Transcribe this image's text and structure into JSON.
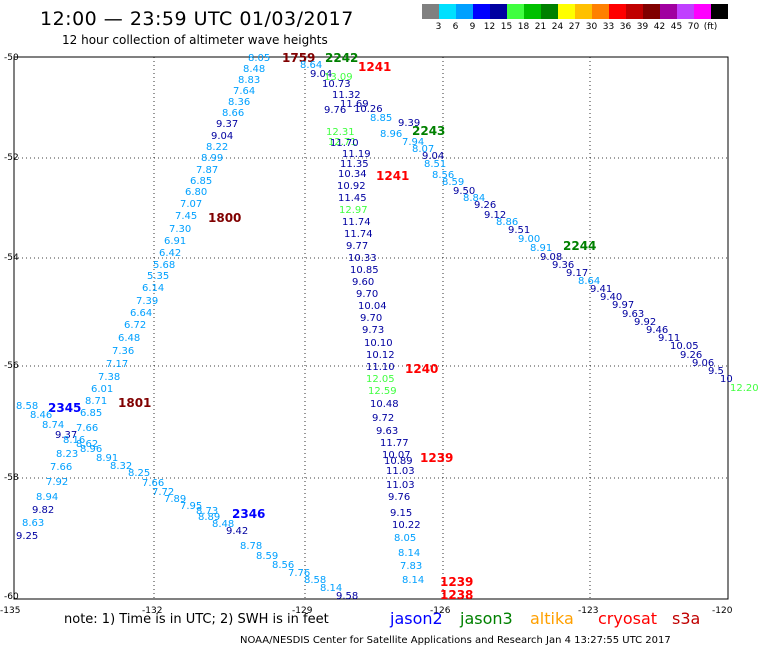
{
  "title": "12:00 — 23:59 UTC 01/03/2017",
  "subtitle": "12 hour collection of altimeter wave heights",
  "colorscale": {
    "colors": [
      "#808080",
      "#00e0ff",
      "#00a0ff",
      "#0000ff",
      "#0000a0",
      "#40ff40",
      "#00c000",
      "#008000",
      "#ffff00",
      "#ffc000",
      "#ff8000",
      "#ff0000",
      "#c00000",
      "#800000",
      "#a000a0",
      "#c040ff",
      "#ff00ff",
      "#000000"
    ],
    "labels": [
      "3",
      "6",
      "9",
      "12",
      "15",
      "18",
      "21",
      "24",
      "27",
      "30",
      "33",
      "36",
      "39",
      "42",
      "45",
      "70",
      "(ft)"
    ]
  },
  "axes": {
    "lat_labels": [
      "-50",
      "-52",
      "-54",
      "-56",
      "-58",
      "-60"
    ],
    "lon_labels": [
      "-135",
      "-132",
      "-129",
      "-126",
      "-123",
      "-120"
    ]
  },
  "time_labels": [
    {
      "text": "1759",
      "color": "#800000"
    },
    {
      "text": "2242",
      "color": "#008000"
    },
    {
      "text": "1241",
      "color": "#ff0000"
    },
    {
      "text": "2243",
      "color": "#008000"
    },
    {
      "text": "1241",
      "color": "#ff0000"
    },
    {
      "text": "1800",
      "color": "#800000"
    },
    {
      "text": "2244",
      "color": "#008000"
    },
    {
      "text": "1240",
      "color": "#ff0000"
    },
    {
      "text": "2345",
      "color": "#0000ff"
    },
    {
      "text": "1801",
      "color": "#800000"
    },
    {
      "text": "1239",
      "color": "#ff0000"
    },
    {
      "text": "2346",
      "color": "#0000ff"
    },
    {
      "text": "1239",
      "color": "#ff0000"
    },
    {
      "text": "1238",
      "color": "#ff0000"
    }
  ],
  "wave_values": [
    {
      "v": "8.05",
      "c": "#00a0ff"
    },
    {
      "v": "8.48",
      "c": "#00a0ff"
    },
    {
      "v": "8.83",
      "c": "#00a0ff"
    },
    {
      "v": "7.64",
      "c": "#00a0ff"
    },
    {
      "v": "8.36",
      "c": "#00a0ff"
    },
    {
      "v": "8.66",
      "c": "#00a0ff"
    },
    {
      "v": "9.37",
      "c": "#0000a0"
    },
    {
      "v": "9.04",
      "c": "#0000a0"
    },
    {
      "v": "8.22",
      "c": "#00a0ff"
    },
    {
      "v": "8.99",
      "c": "#00a0ff"
    },
    {
      "v": "7.87",
      "c": "#00a0ff"
    },
    {
      "v": "6.85",
      "c": "#00a0ff"
    },
    {
      "v": "6.80",
      "c": "#00a0ff"
    },
    {
      "v": "7.07",
      "c": "#00a0ff"
    },
    {
      "v": "7.45",
      "c": "#00a0ff"
    },
    {
      "v": "7.30",
      "c": "#00a0ff"
    },
    {
      "v": "6.91",
      "c": "#00a0ff"
    },
    {
      "v": "6.42",
      "c": "#00a0ff"
    },
    {
      "v": "5.68",
      "c": "#00a0ff"
    },
    {
      "v": "5.35",
      "c": "#00a0ff"
    },
    {
      "v": "6.14",
      "c": "#00a0ff"
    },
    {
      "v": "7.39",
      "c": "#00a0ff"
    },
    {
      "v": "6.64",
      "c": "#00a0ff"
    },
    {
      "v": "6.72",
      "c": "#00a0ff"
    },
    {
      "v": "6.48",
      "c": "#00a0ff"
    },
    {
      "v": "7.36",
      "c": "#00a0ff"
    },
    {
      "v": "7.17",
      "c": "#00a0ff"
    },
    {
      "v": "7.38",
      "c": "#00a0ff"
    },
    {
      "v": "6.01",
      "c": "#00a0ff"
    },
    {
      "v": "8.71",
      "c": "#00a0ff"
    },
    {
      "v": "6.85",
      "c": "#00a0ff"
    },
    {
      "v": "7.66",
      "c": "#00a0ff"
    },
    {
      "v": "8.58",
      "c": "#00a0ff"
    },
    {
      "v": "8.46",
      "c": "#00a0ff"
    },
    {
      "v": "8.74",
      "c": "#00a0ff"
    },
    {
      "v": "9.37",
      "c": "#0000a0"
    },
    {
      "v": "8.16",
      "c": "#00a0ff"
    },
    {
      "v": "8.62",
      "c": "#00a0ff"
    },
    {
      "v": "8.96",
      "c": "#00a0ff"
    },
    {
      "v": "8.23",
      "c": "#00a0ff"
    },
    {
      "v": "8.91",
      "c": "#00a0ff"
    },
    {
      "v": "8.32",
      "c": "#00a0ff"
    },
    {
      "v": "7.66",
      "c": "#00a0ff"
    },
    {
      "v": "8.25",
      "c": "#00a0ff"
    },
    {
      "v": "7.66",
      "c": "#00a0ff"
    },
    {
      "v": "7.92",
      "c": "#00a0ff"
    },
    {
      "v": "7.72",
      "c": "#00a0ff"
    },
    {
      "v": "7.89",
      "c": "#00a0ff"
    },
    {
      "v": "7.95",
      "c": "#00a0ff"
    },
    {
      "v": "8.94",
      "c": "#00a0ff"
    },
    {
      "v": "8.73",
      "c": "#00a0ff"
    },
    {
      "v": "9.82",
      "c": "#0000a0"
    },
    {
      "v": "8.89",
      "c": "#00a0ff"
    },
    {
      "v": "8.48",
      "c": "#00a0ff"
    },
    {
      "v": "8.63",
      "c": "#00a0ff"
    },
    {
      "v": "9.42",
      "c": "#0000a0"
    },
    {
      "v": "9.25",
      "c": "#0000a0"
    },
    {
      "v": "8.78",
      "c": "#00a0ff"
    },
    {
      "v": "8.59",
      "c": "#00a0ff"
    },
    {
      "v": "8.56",
      "c": "#00a0ff"
    },
    {
      "v": "7.76",
      "c": "#00a0ff"
    },
    {
      "v": "8.58",
      "c": "#00a0ff"
    },
    {
      "v": "8.14",
      "c": "#00a0ff"
    },
    {
      "v": "9.58",
      "c": "#0000a0"
    },
    {
      "v": "8.64",
      "c": "#00a0ff"
    },
    {
      "v": "9.04",
      "c": "#0000a0"
    },
    {
      "v": "10.73",
      "c": "#0000a0"
    },
    {
      "v": "11.32",
      "c": "#0000a0"
    },
    {
      "v": "11.69",
      "c": "#0000a0"
    },
    {
      "v": "9.76",
      "c": "#0000a0"
    },
    {
      "v": "10.26",
      "c": "#0000a0"
    },
    {
      "v": "8.85",
      "c": "#00a0ff"
    },
    {
      "v": "9.39",
      "c": "#0000a0"
    },
    {
      "v": "8.96",
      "c": "#00a0ff"
    },
    {
      "v": "7.94",
      "c": "#00a0ff"
    },
    {
      "v": "8.07",
      "c": "#00a0ff"
    },
    {
      "v": "9.04",
      "c": "#0000a0"
    },
    {
      "v": "8.51",
      "c": "#00a0ff"
    },
    {
      "v": "8.56",
      "c": "#00a0ff"
    },
    {
      "v": "8.59",
      "c": "#00a0ff"
    },
    {
      "v": "9.50",
      "c": "#0000a0"
    },
    {
      "v": "8.84",
      "c": "#00a0ff"
    },
    {
      "v": "9.26",
      "c": "#0000a0"
    },
    {
      "v": "9.12",
      "c": "#0000a0"
    },
    {
      "v": "8.86",
      "c": "#00a0ff"
    },
    {
      "v": "9.51",
      "c": "#0000a0"
    },
    {
      "v": "9.00",
      "c": "#00a0ff"
    },
    {
      "v": "8.91",
      "c": "#00a0ff"
    },
    {
      "v": "9.08",
      "c": "#0000a0"
    },
    {
      "v": "9.36",
      "c": "#0000a0"
    },
    {
      "v": "9.17",
      "c": "#0000a0"
    },
    {
      "v": "8.64",
      "c": "#00a0ff"
    },
    {
      "v": "9.41",
      "c": "#0000a0"
    },
    {
      "v": "9.40",
      "c": "#0000a0"
    },
    {
      "v": "9.97",
      "c": "#0000a0"
    },
    {
      "v": "9.63",
      "c": "#0000a0"
    },
    {
      "v": "9.92",
      "c": "#0000a0"
    },
    {
      "v": "9.46",
      "c": "#0000a0"
    },
    {
      "v": "9.11",
      "c": "#0000a0"
    },
    {
      "v": "10.05",
      "c": "#0000a0"
    },
    {
      "v": "9.26",
      "c": "#0000a0"
    },
    {
      "v": "9.06",
      "c": "#0000a0"
    },
    {
      "v": "9.5",
      "c": "#0000a0"
    },
    {
      "v": "10",
      "c": "#0000a0"
    },
    {
      "v": "12.20",
      "c": "#40ff40"
    },
    {
      "v": "13.09",
      "c": "#40ff40"
    },
    {
      "v": "12.31",
      "c": "#40ff40"
    },
    {
      "v": "12.71",
      "c": "#40ff40"
    },
    {
      "v": "11.70",
      "c": "#0000a0"
    },
    {
      "v": "11.19",
      "c": "#0000a0"
    },
    {
      "v": "11.35",
      "c": "#0000a0"
    },
    {
      "v": "10.34",
      "c": "#0000a0"
    },
    {
      "v": "10.92",
      "c": "#0000a0"
    },
    {
      "v": "11.45",
      "c": "#0000a0"
    },
    {
      "v": "12.97",
      "c": "#40ff40"
    },
    {
      "v": "11.74",
      "c": "#0000a0"
    },
    {
      "v": "11.74",
      "c": "#0000a0"
    },
    {
      "v": "9.77",
      "c": "#0000a0"
    },
    {
      "v": "10.33",
      "c": "#0000a0"
    },
    {
      "v": "10.85",
      "c": "#0000a0"
    },
    {
      "v": "9.60",
      "c": "#0000a0"
    },
    {
      "v": "9.70",
      "c": "#0000a0"
    },
    {
      "v": "10.04",
      "c": "#0000a0"
    },
    {
      "v": "9.70",
      "c": "#0000a0"
    },
    {
      "v": "9.73",
      "c": "#0000a0"
    },
    {
      "v": "10.10",
      "c": "#0000a0"
    },
    {
      "v": "10.12",
      "c": "#0000a0"
    },
    {
      "v": "11.10",
      "c": "#0000a0"
    },
    {
      "v": "12.05",
      "c": "#40ff40"
    },
    {
      "v": "12.59",
      "c": "#40ff40"
    },
    {
      "v": "10.48",
      "c": "#0000a0"
    },
    {
      "v": "9.72",
      "c": "#0000a0"
    },
    {
      "v": "9.63",
      "c": "#0000a0"
    },
    {
      "v": "11.77",
      "c": "#0000a0"
    },
    {
      "v": "10.07",
      "c": "#0000a0"
    },
    {
      "v": "10.89",
      "c": "#0000a0"
    },
    {
      "v": "11.03",
      "c": "#0000a0"
    },
    {
      "v": "11.03",
      "c": "#0000a0"
    },
    {
      "v": "9.76",
      "c": "#0000a0"
    },
    {
      "v": "9.15",
      "c": "#0000a0"
    },
    {
      "v": "10.22",
      "c": "#0000a0"
    },
    {
      "v": "8.05",
      "c": "#00a0ff"
    },
    {
      "v": "8.14",
      "c": "#00a0ff"
    },
    {
      "v": "7.83",
      "c": "#00a0ff"
    },
    {
      "v": "8.14",
      "c": "#00a0ff"
    }
  ],
  "note": "note: 1) Time is in UTC; 2) SWH is in feet",
  "legend": [
    {
      "name": "jason2",
      "color": "#0000ff"
    },
    {
      "name": "jason3",
      "color": "#008000"
    },
    {
      "name": "altika",
      "color": "#ffa000"
    },
    {
      "name": "cryosat",
      "color": "#ff0000"
    },
    {
      "name": "s3a",
      "color": "#c00000"
    }
  ],
  "footer": "NOAA/NESDIS Center for Satellite Applications and Research   Jan  4 13:27:55 UTC 2017"
}
